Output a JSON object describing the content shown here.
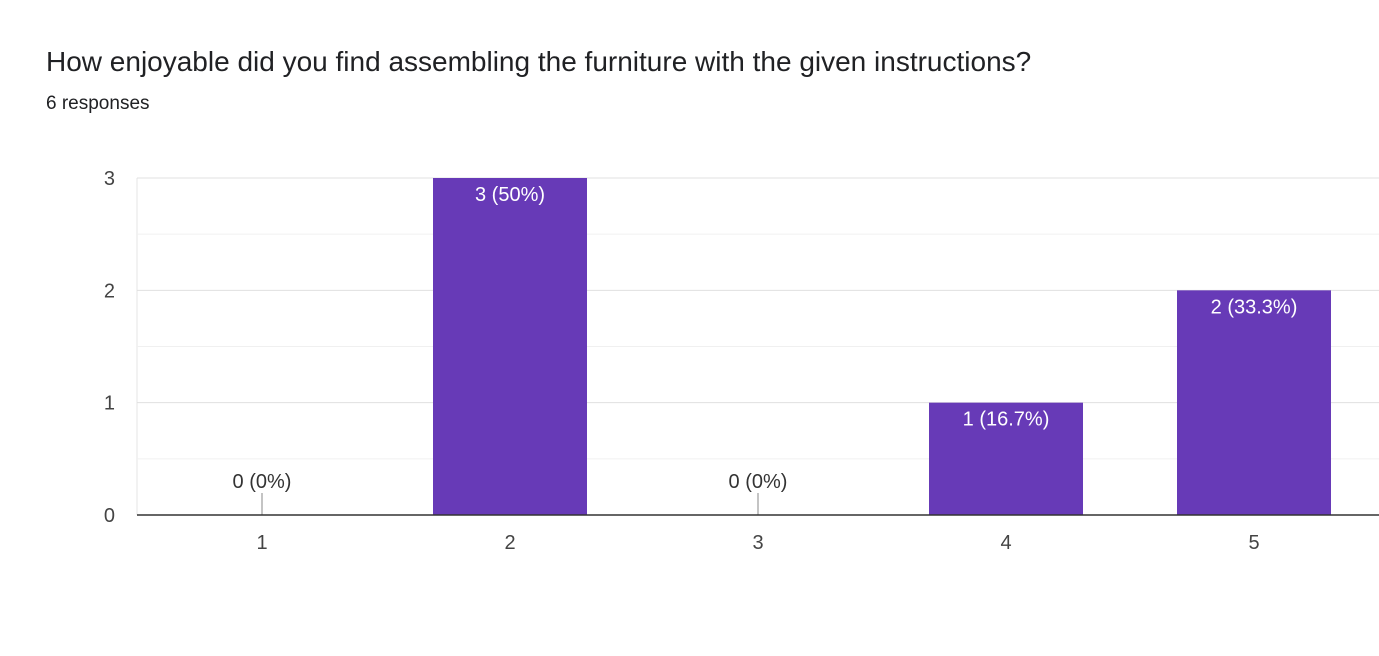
{
  "question": {
    "title": "How enjoyable did you find assembling the furniture with the given instructions?",
    "responses": "6 responses"
  },
  "chart_data": {
    "type": "bar",
    "categories": [
      "1",
      "2",
      "3",
      "4",
      "5"
    ],
    "values": [
      0,
      3,
      0,
      1,
      2
    ],
    "data_labels": [
      "0 (0%)",
      "3 (50%)",
      "0 (0%)",
      "1 (16.7%)",
      "2 (33.3%)"
    ],
    "y_ticks": [
      "0",
      "1",
      "2",
      "3"
    ],
    "ylim": [
      0,
      3
    ],
    "grid": true,
    "bar_color": "#673ab7"
  }
}
